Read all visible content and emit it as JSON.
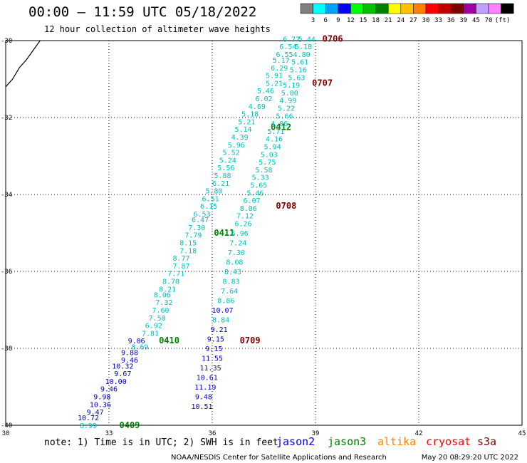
{
  "header": {
    "title": "00:00 – 11:59 UTC 05/18/2022",
    "subtitle": "12 hour collection of altimeter wave heights"
  },
  "colorbar": {
    "labels": [
      "3",
      "6",
      "9",
      "12",
      "15",
      "18",
      "21",
      "24",
      "27",
      "30",
      "33",
      "36",
      "39",
      "45",
      "70"
    ],
    "unit": "(ft)",
    "colors": [
      "#808080",
      "#00ffff",
      "#00a0ff",
      "#0000ff",
      "#00ff00",
      "#00c000",
      "#008000",
      "#ffff00",
      "#ffc000",
      "#ff8000",
      "#ff0000",
      "#c00000",
      "#800000",
      "#a000a0",
      "#c0a0ff",
      "#ff80ff",
      "#000000"
    ]
  },
  "chart_data": {
    "type": "scatter",
    "xlim": [
      30,
      45
    ],
    "ylim": [
      -40,
      -30
    ],
    "x_ticks": [
      "30",
      "33",
      "36",
      "39",
      "42",
      "45"
    ],
    "y_ticks": [
      "-30",
      "-32",
      "-34",
      "-36",
      "-38",
      "-40"
    ],
    "grid": true,
    "coastline": [
      [
        30.0,
        -31.2
      ],
      [
        30.2,
        -31.0
      ],
      [
        30.4,
        -30.7
      ],
      [
        30.6,
        -30.5
      ],
      [
        30.8,
        -30.25
      ],
      [
        31.0,
        -30.0
      ]
    ],
    "tracks": [
      {
        "time": "0409",
        "time_x": 33.3,
        "time_y": -40.0,
        "time_color": "#008000",
        "points": [
          {
            "x": 32.4,
            "y": -40.0,
            "v": "8.99",
            "c": "#00bfbf"
          },
          {
            "x": 32.4,
            "y": -39.8,
            "v": "10.72",
            "c": "#0000c0"
          },
          {
            "x": 32.6,
            "y": -39.65,
            "v": "9.47",
            "c": "#0000c0"
          },
          {
            "x": 32.75,
            "y": -39.45,
            "v": "10.36",
            "c": "#0000c0"
          },
          {
            "x": 32.8,
            "y": -39.25,
            "v": "9.98",
            "c": "#0000c0"
          },
          {
            "x": 33.0,
            "y": -39.05,
            "v": "9.46",
            "c": "#0000c0"
          },
          {
            "x": 33.2,
            "y": -38.85,
            "v": "10.00",
            "c": "#0000c0"
          },
          {
            "x": 33.4,
            "y": -38.65,
            "v": "9.67",
            "c": "#0000c0"
          },
          {
            "x": 33.4,
            "y": -38.45,
            "v": "10.32",
            "c": "#0000c0"
          },
          {
            "x": 33.6,
            "y": -38.3,
            "v": "9.46",
            "c": "#0000c0"
          },
          {
            "x": 33.6,
            "y": -38.1,
            "v": "9.88",
            "c": "#0000c0"
          },
          {
            "x": 33.9,
            "y": -37.95,
            "v": "8.69",
            "c": "#00bfbf"
          },
          {
            "x": 33.8,
            "y": -37.8,
            "v": "9.06",
            "c": "#0000c0"
          },
          {
            "x": 34.2,
            "y": -37.6,
            "v": "7.81",
            "c": "#00bfbf"
          },
          {
            "x": 34.3,
            "y": -37.4,
            "v": "6.92",
            "c": "#00bfbf"
          },
          {
            "x": 34.4,
            "y": -37.2,
            "v": "7.50",
            "c": "#00bfbf"
          },
          {
            "x": 34.5,
            "y": -37.0,
            "v": "7.60",
            "c": "#00bfbf"
          },
          {
            "x": 34.6,
            "y": -36.8,
            "v": "7.32",
            "c": "#00bfbf"
          },
          {
            "x": 34.55,
            "y": -36.6,
            "v": "8.06",
            "c": "#00bfbf"
          },
          {
            "x": 34.7,
            "y": -36.45,
            "v": "8.21",
            "c": "#00bfbf"
          },
          {
            "x": 34.8,
            "y": -36.25,
            "v": "8.70",
            "c": "#00bfbf"
          },
          {
            "x": 34.95,
            "y": -36.05,
            "v": "7.71",
            "c": "#00bfbf"
          },
          {
            "x": 35.1,
            "y": -35.85,
            "v": "7.87",
            "c": "#00bfbf"
          },
          {
            "x": 35.1,
            "y": -35.65,
            "v": "8.77",
            "c": "#00bfbf"
          },
          {
            "x": 35.3,
            "y": -35.45,
            "v": "7.18",
            "c": "#00bfbf"
          },
          {
            "x": 35.3,
            "y": -35.25,
            "v": "8.15",
            "c": "#00bfbf"
          },
          {
            "x": 35.45,
            "y": -35.05,
            "v": "7.79",
            "c": "#00bfbf"
          },
          {
            "x": 35.55,
            "y": -34.85,
            "v": "7.30",
            "c": "#00bfbf"
          },
          {
            "x": 35.65,
            "y": -34.65,
            "v": "6.47",
            "c": "#00bfbf"
          },
          {
            "x": 35.7,
            "y": -34.5,
            "v": "6.53",
            "c": "#00bfbf"
          },
          {
            "x": 35.9,
            "y": -34.3,
            "v": "6.15",
            "c": "#00bfbf"
          },
          {
            "x": 35.95,
            "y": -34.1,
            "v": "6.51",
            "c": "#00bfbf"
          },
          {
            "x": 36.05,
            "y": -33.9,
            "v": "5.80",
            "c": "#00bfbf"
          },
          {
            "x": 36.25,
            "y": -33.7,
            "v": "6.21",
            "c": "#00bfbf"
          },
          {
            "x": 36.3,
            "y": -33.5,
            "v": "5.88",
            "c": "#00bfbf"
          },
          {
            "x": 36.4,
            "y": -33.3,
            "v": "5.56",
            "c": "#00bfbf"
          },
          {
            "x": 36.45,
            "y": -33.1,
            "v": "5.24",
            "c": "#00bfbf"
          },
          {
            "x": 36.55,
            "y": -32.9,
            "v": "5.52",
            "c": "#00bfbf"
          },
          {
            "x": 36.7,
            "y": -32.7,
            "v": "5.96",
            "c": "#00bfbf"
          },
          {
            "x": 36.8,
            "y": -32.5,
            "v": "4.39",
            "c": "#00bfbf"
          },
          {
            "x": 36.9,
            "y": -32.3,
            "v": "5.14",
            "c": "#00bfbf"
          },
          {
            "x": 37.0,
            "y": -32.1,
            "v": "5.21",
            "c": "#00bfbf"
          },
          {
            "x": 37.1,
            "y": -31.9,
            "v": "5.18",
            "c": "#00bfbf"
          },
          {
            "x": 37.3,
            "y": -31.7,
            "v": "4.69",
            "c": "#00bfbf"
          },
          {
            "x": 37.5,
            "y": -31.5,
            "v": "6.02",
            "c": "#00bfbf"
          },
          {
            "x": 37.55,
            "y": -31.3,
            "v": "5.46",
            "c": "#00bfbf"
          },
          {
            "x": 37.8,
            "y": -31.1,
            "v": "5.21",
            "c": "#00bfbf"
          },
          {
            "x": 37.8,
            "y": -30.9,
            "v": "5.91",
            "c": "#00bfbf"
          },
          {
            "x": 37.95,
            "y": -30.7,
            "v": "6.29",
            "c": "#00bfbf"
          },
          {
            "x": 38.0,
            "y": -30.5,
            "v": "5.17",
            "c": "#00bfbf"
          },
          {
            "x": 38.1,
            "y": -30.35,
            "v": "6.55",
            "c": "#00bfbf"
          },
          {
            "x": 38.2,
            "y": -30.15,
            "v": "6.54",
            "c": "#00bfbf"
          },
          {
            "x": 38.3,
            "y": -29.95,
            "v": "6.77",
            "c": "#00bfbf"
          }
        ]
      },
      {
        "time": "0410",
        "time_x": 34.45,
        "time_y": -37.8,
        "time_color": "#008000",
        "points": []
      },
      {
        "time": "0411",
        "time_x": 36.05,
        "time_y": -35.0,
        "time_color": "#008000",
        "points": []
      },
      {
        "time": "0412",
        "time_x": 37.7,
        "time_y": -32.25,
        "time_color": "#008000",
        "points": []
      },
      {
        "time": "0706",
        "time_x": 39.2,
        "time_y": -29.95,
        "time_color": "#800000",
        "points": [
          {
            "x": 38.75,
            "y": -29.95,
            "v": "5.44",
            "c": "#00bfbf"
          },
          {
            "x": 38.65,
            "y": -30.15,
            "v": "5.18",
            "c": "#00bfbf"
          },
          {
            "x": 38.6,
            "y": -30.35,
            "v": "4.80",
            "c": "#00bfbf"
          },
          {
            "x": 38.55,
            "y": -30.55,
            "v": "5.61",
            "c": "#00bfbf"
          },
          {
            "x": 38.5,
            "y": -30.75,
            "v": "5.16",
            "c": "#00bfbf"
          },
          {
            "x": 38.45,
            "y": -30.95,
            "v": "5.63",
            "c": "#00bfbf"
          },
          {
            "x": 38.3,
            "y": -31.15,
            "v": "5.19",
            "c": "#00bfbf"
          },
          {
            "x": 38.25,
            "y": -31.35,
            "v": "5.00",
            "c": "#00bfbf"
          },
          {
            "x": 38.2,
            "y": -31.55,
            "v": "4.99",
            "c": "#00bfbf"
          },
          {
            "x": 38.15,
            "y": -31.75,
            "v": "5.22",
            "c": "#00bfbf"
          },
          {
            "x": 38.1,
            "y": -31.95,
            "v": "5.66",
            "c": "#00bfbf"
          },
          {
            "x": 37.95,
            "y": -32.15,
            "v": "4.06",
            "c": "#00bfbf"
          },
          {
            "x": 37.85,
            "y": -32.35,
            "v": "5.71",
            "c": "#00bfbf"
          },
          {
            "x": 37.8,
            "y": -32.55,
            "v": "4.16",
            "c": "#00bfbf"
          },
          {
            "x": 37.75,
            "y": -32.75,
            "v": "5.94",
            "c": "#00bfbf"
          },
          {
            "x": 37.65,
            "y": -32.95,
            "v": "5.03",
            "c": "#00bfbf"
          },
          {
            "x": 37.6,
            "y": -33.15,
            "v": "5.75",
            "c": "#00bfbf"
          },
          {
            "x": 37.5,
            "y": -33.35,
            "v": "5.58",
            "c": "#00bfbf"
          },
          {
            "x": 37.4,
            "y": -33.55,
            "v": "5.33",
            "c": "#00bfbf"
          },
          {
            "x": 37.35,
            "y": -33.75,
            "v": "5.65",
            "c": "#00bfbf"
          },
          {
            "x": 37.25,
            "y": -33.95,
            "v": "5.46",
            "c": "#00bfbf"
          },
          {
            "x": 37.15,
            "y": -34.15,
            "v": "6.07",
            "c": "#00bfbf"
          },
          {
            "x": 37.05,
            "y": -34.35,
            "v": "8.06",
            "c": "#00bfbf"
          },
          {
            "x": 36.95,
            "y": -34.55,
            "v": "7.12",
            "c": "#00bfbf"
          },
          {
            "x": 36.9,
            "y": -34.75,
            "v": "6.26",
            "c": "#00bfbf"
          },
          {
            "x": 36.8,
            "y": -35.0,
            "v": "6.96",
            "c": "#00bfbf"
          },
          {
            "x": 36.75,
            "y": -35.25,
            "v": "7.24",
            "c": "#00bfbf"
          },
          {
            "x": 36.7,
            "y": -35.5,
            "v": "7.30",
            "c": "#00bfbf"
          },
          {
            "x": 36.65,
            "y": -35.75,
            "v": "8.08",
            "c": "#00bfbf"
          },
          {
            "x": 36.6,
            "y": -36.0,
            "v": "8.43",
            "c": "#00bfbf"
          },
          {
            "x": 36.55,
            "y": -36.25,
            "v": "8.83",
            "c": "#00bfbf"
          },
          {
            "x": 36.5,
            "y": -36.5,
            "v": "7.64",
            "c": "#00bfbf"
          },
          {
            "x": 36.4,
            "y": -36.75,
            "v": "8.86",
            "c": "#00bfbf"
          },
          {
            "x": 36.3,
            "y": -37.0,
            "v": "10.07",
            "c": "#0000c0"
          },
          {
            "x": 36.25,
            "y": -37.25,
            "v": "8.84",
            "c": "#00bfbf"
          },
          {
            "x": 36.2,
            "y": -37.5,
            "v": "9.21",
            "c": "#0000c0"
          },
          {
            "x": 36.1,
            "y": -37.75,
            "v": "9.15",
            "c": "#0000c0"
          },
          {
            "x": 36.05,
            "y": -38.0,
            "v": "9.15",
            "c": "#0000c0"
          },
          {
            "x": 36.0,
            "y": -38.25,
            "v": "11.55",
            "c": "#0000c0"
          },
          {
            "x": 35.95,
            "y": -38.5,
            "v": "11.35",
            "c": "#0000c0"
          },
          {
            "x": 35.85,
            "y": -38.75,
            "v": "10.61",
            "c": "#0000c0"
          },
          {
            "x": 35.8,
            "y": -39.0,
            "v": "11.19",
            "c": "#0000c0"
          },
          {
            "x": 35.75,
            "y": -39.25,
            "v": "9.48",
            "c": "#0000c0"
          },
          {
            "x": 35.7,
            "y": -39.5,
            "v": "10.51",
            "c": "#0000c0"
          }
        ]
      },
      {
        "time": "0707",
        "time_x": 38.9,
        "time_y": -31.1,
        "time_color": "#800000",
        "points": []
      },
      {
        "time": "0708",
        "time_x": 37.85,
        "time_y": -34.3,
        "time_color": "#800000",
        "points": []
      },
      {
        "time": "0709",
        "time_x": 36.8,
        "time_y": -37.8,
        "time_color": "#800000",
        "points": []
      }
    ]
  },
  "footer": {
    "note": "note: 1) Time is in UTC; 2) SWH is in feet",
    "satellites": [
      {
        "name": "jason2",
        "color": "#0000ff"
      },
      {
        "name": "jason3",
        "color": "#008000"
      },
      {
        "name": "altika",
        "color": "#ff8000"
      },
      {
        "name": "cryosat",
        "color": "#ff0000"
      },
      {
        "name": "s3a",
        "color": "#800000"
      }
    ],
    "credit": "NOAA/NESDIS Center for Satellite Applications and Research",
    "timestamp": "May 20 08:29:20 UTC 2022"
  }
}
